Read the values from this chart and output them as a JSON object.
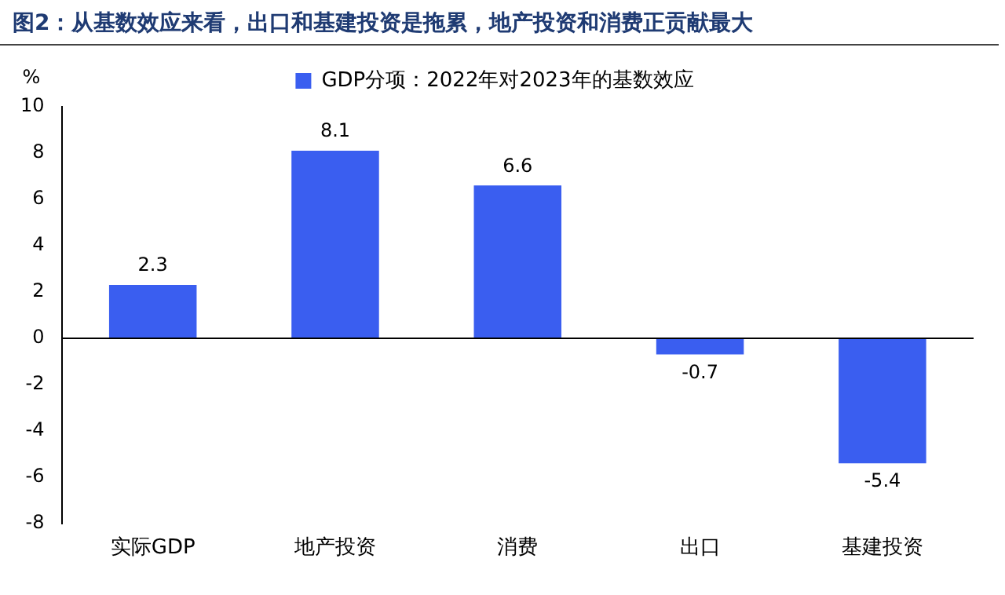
{
  "chart_data": {
    "type": "bar",
    "title": "图2：从基数效应来看，出口和基建投资是拖累，地产投资和消费正贡献最大",
    "ylabel": "%",
    "categories": [
      "实际GDP",
      "地产投资",
      "消费",
      "出口",
      "基建投资"
    ],
    "series": [
      {
        "name": "GDP分项：2022年对2023年的基数效应",
        "color": "#3a5ef0",
        "values": [
          2.3,
          8.1,
          6.6,
          -0.7,
          -5.4
        ]
      }
    ],
    "ylim": [
      -8,
      10
    ],
    "yticks": [
      -8,
      -6,
      -4,
      -2,
      0,
      2,
      4,
      6,
      8,
      10
    ],
    "grid": false,
    "ref_lines": [
      {
        "axis": "y",
        "value": 0,
        "color": "#000000"
      }
    ],
    "legend": "top",
    "data_labels": true
  }
}
